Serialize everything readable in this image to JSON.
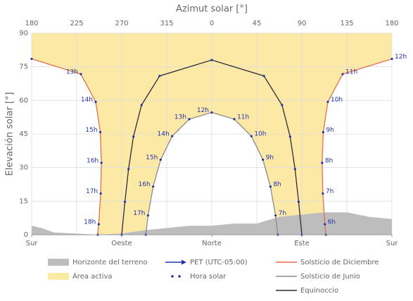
{
  "chart_data": {
    "type": "sun_path",
    "title": "Azimut solar [°]",
    "ylabel": "Elevación solar [°]",
    "xlim": [
      180,
      540
    ],
    "xticks": [
      180,
      225,
      270,
      315,
      {
        "value": 360,
        "label": "0"
      },
      {
        "value": 405,
        "label": "45"
      },
      {
        "value": 450,
        "label": "90"
      },
      {
        "value": 495,
        "label": "135"
      },
      {
        "value": 540,
        "label": "180"
      }
    ],
    "x2ticks": [
      {
        "value": 180,
        "label": "Sur"
      },
      {
        "value": 270,
        "label": "Oeste"
      },
      {
        "value": 360,
        "label": "Norte"
      },
      {
        "value": 450,
        "label": "Este"
      },
      {
        "value": 540,
        "label": "Sur"
      }
    ],
    "ylim": [
      0,
      90
    ],
    "yticks": [
      0,
      15,
      30,
      45,
      60,
      75,
      90
    ],
    "grid": true,
    "horizon": {
      "name": "Horizonte del terreno",
      "color": "#bdbdbd",
      "x": [
        180,
        190,
        202.5,
        225,
        247.5,
        270,
        292.5,
        315,
        337.5,
        360,
        382.5,
        405,
        427.5,
        450,
        472.5,
        495,
        517.5,
        540
      ],
      "values": [
        4,
        3,
        1,
        0.5,
        0,
        0.5,
        2,
        3,
        4,
        4,
        5,
        5,
        8,
        9,
        10,
        10,
        8,
        7
      ]
    },
    "active_area": {
      "name": "Área activa",
      "color": "#fde9a6"
    },
    "pet": {
      "name": "PET (UTC-05:00)",
      "color": "#2233aa"
    },
    "solar_hour": {
      "name": "Hora solar",
      "color": "#2233aa"
    },
    "paths": [
      {
        "name": "Solsticio de Diciembre",
        "color": "#e0714a",
        "x": [
          474,
          473,
          471,
          470.3,
          471.4,
          476,
          490.8,
          540,
          null,
          180,
          229.2,
          244,
          248.6,
          249.7,
          249,
          247,
          246
        ],
        "values": [
          0,
          4.7,
          18.4,
          32.1,
          45.8,
          59.3,
          71.7,
          78.5,
          null,
          78.5,
          71.7,
          59.3,
          45.8,
          32.1,
          18.4,
          4.7,
          0
        ],
        "hour_labels": [
          null,
          "6h",
          "7h",
          "8h",
          "9h",
          "10h",
          "11h",
          "12h",
          null,
          null,
          "13h",
          "14h",
          "15h",
          "16h",
          "17h",
          "18h",
          null
        ]
      },
      {
        "name": "Solsticio de Junio",
        "color": "#8a8a8a",
        "x": [
          426,
          423.7,
          418.6,
          411.1,
          399.6,
          382.5,
          360,
          337.5,
          320.4,
          308.9,
          301.4,
          296.3,
          294
        ],
        "values": [
          0,
          8.6,
          21.5,
          33.5,
          44,
          51.6,
          54.6,
          51.6,
          44,
          33.5,
          21.5,
          8.6,
          0
        ],
        "hour_labels": [
          null,
          "7h",
          "8h",
          "9h",
          "10h",
          "11h",
          "12h",
          "13h",
          "14h",
          "15h",
          "16h",
          "17h",
          null
        ]
      },
      {
        "name": "Equinoccio",
        "color": "#2b2b3a",
        "x": [
          450,
          446.8,
          443.2,
          438.3,
          430.2,
          412.1,
          360,
          307.9,
          289.8,
          281.7,
          276.8,
          273.2,
          270
        ],
        "values": [
          0,
          14.7,
          29.3,
          43.8,
          57.9,
          70.9,
          78,
          70.9,
          57.9,
          43.8,
          29.3,
          14.7,
          0
        ],
        "hour_labels": [
          null,
          null,
          null,
          null,
          null,
          null,
          null,
          null,
          null,
          null,
          null,
          null,
          null
        ]
      }
    ]
  }
}
